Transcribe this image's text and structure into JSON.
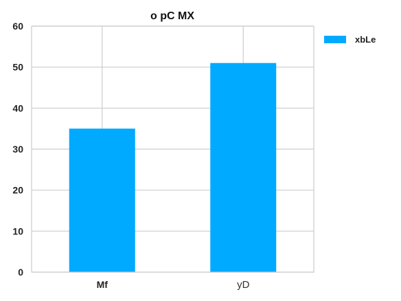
{
  "chart_data": {
    "type": "bar",
    "title": "o  pC MX",
    "categories": [
      "Mf",
      "yD"
    ],
    "series": [
      {
        "name": "xbLe",
        "values": [
          35,
          51
        ],
        "color": "#00AAFF"
      }
    ],
    "xlabel": "",
    "ylabel": "",
    "ylim": [
      0,
      60
    ],
    "yticks": [
      0,
      10,
      20,
      30,
      40,
      50,
      60
    ],
    "grid": true,
    "legend_position": "top-right-outside"
  }
}
